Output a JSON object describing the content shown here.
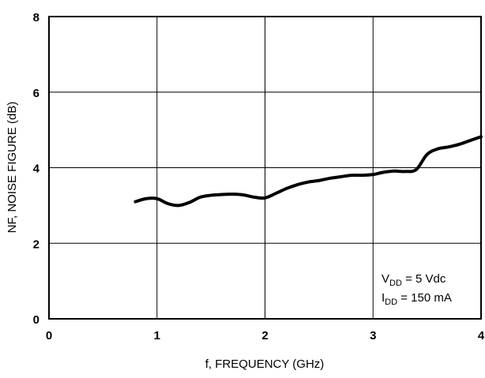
{
  "chart_data": {
    "type": "line",
    "xlabel": "f, FREQUENCY (GHz)",
    "ylabel": "NF, NOISE FIGURE (dB)",
    "xlim": [
      0,
      4
    ],
    "ylim": [
      0,
      8
    ],
    "xticks": [
      "0",
      "1",
      "2",
      "3",
      "4"
    ],
    "yticks": [
      "0",
      "2",
      "4",
      "6",
      "8"
    ],
    "grid": true,
    "annotation": {
      "line1_main": "V",
      "line1_sub": "DD",
      "line1_rest": " = 5 Vdc",
      "line2_main": "I",
      "line2_sub": "DD",
      "line2_rest": " = 150 mA"
    },
    "series": [
      {
        "x": [
          0.8,
          0.9,
          1.0,
          1.1,
          1.2,
          1.3,
          1.4,
          1.5,
          1.6,
          1.7,
          1.8,
          1.9,
          2.0,
          2.1,
          2.2,
          2.3,
          2.4,
          2.5,
          2.6,
          2.7,
          2.8,
          2.9,
          3.0,
          3.1,
          3.2,
          3.3,
          3.4,
          3.5,
          3.6,
          3.7,
          3.8,
          3.9,
          4.0
        ],
        "y": [
          3.1,
          3.18,
          3.18,
          3.05,
          3.0,
          3.08,
          3.22,
          3.27,
          3.29,
          3.3,
          3.28,
          3.22,
          3.2,
          3.32,
          3.45,
          3.55,
          3.62,
          3.66,
          3.72,
          3.76,
          3.8,
          3.8,
          3.82,
          3.88,
          3.91,
          3.9,
          3.95,
          4.35,
          4.5,
          4.55,
          4.62,
          4.72,
          4.82
        ]
      }
    ]
  }
}
